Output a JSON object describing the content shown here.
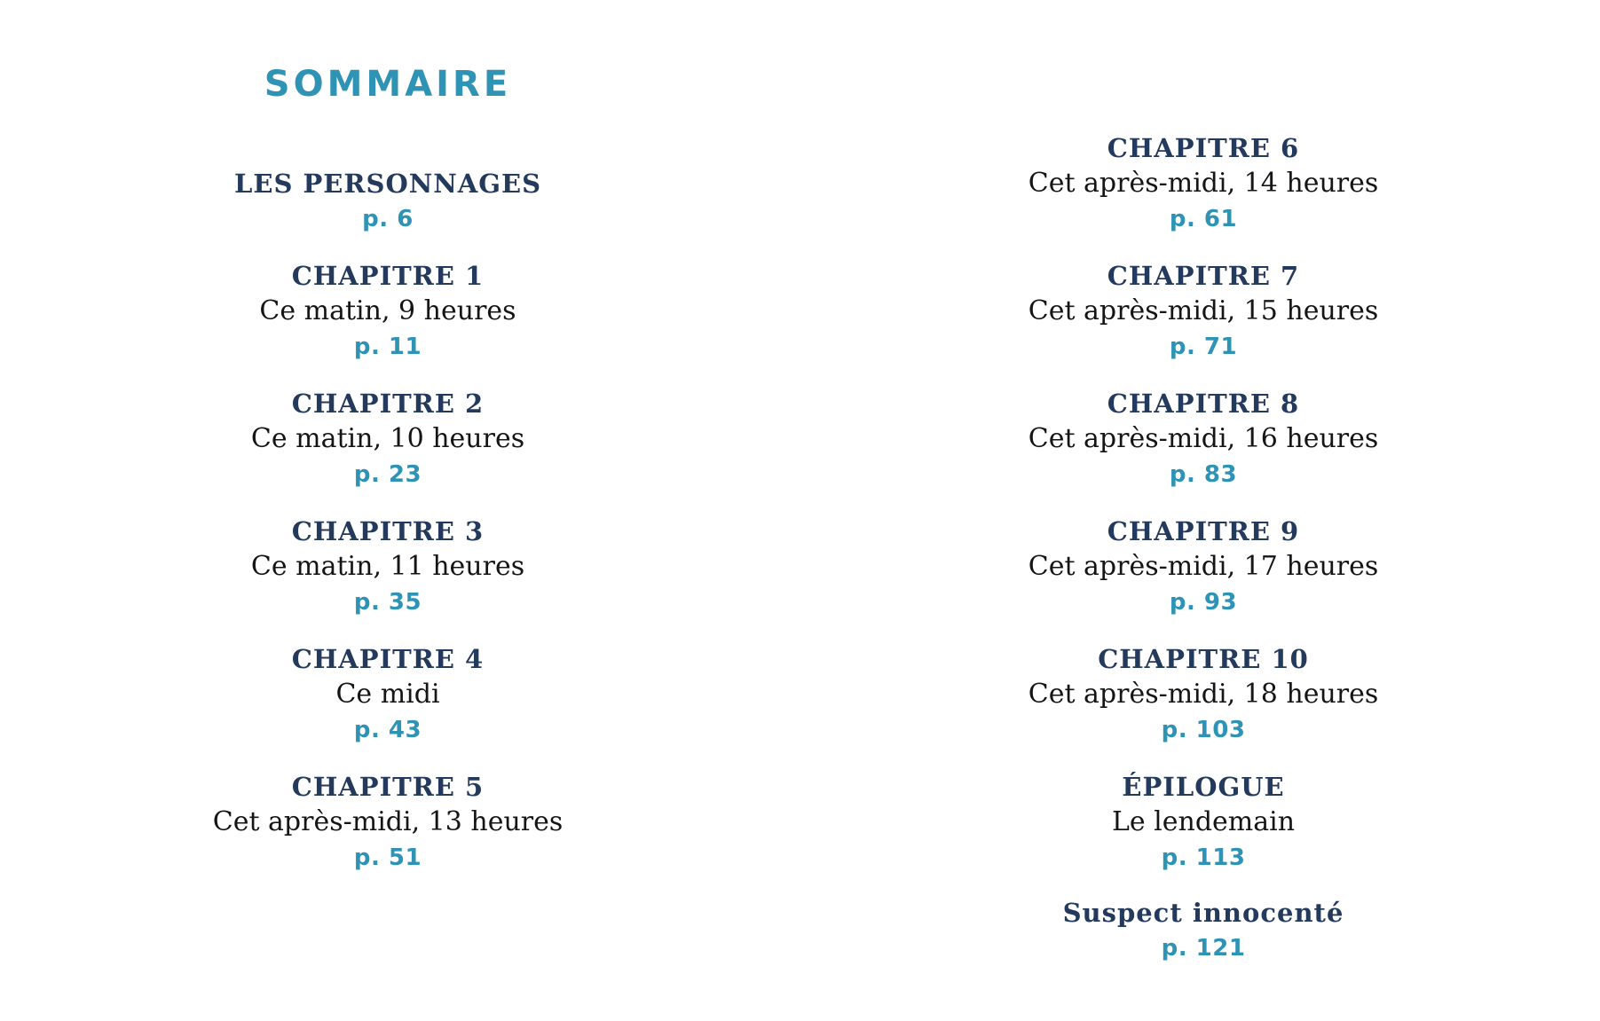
{
  "title": "SOMMAIRE",
  "colors": {
    "accent": "#2e93b5",
    "heading_navy": "#233a5c",
    "body_text": "#151515",
    "background": "#ffffff"
  },
  "toc": {
    "left_column": [
      {
        "title": "LES PERSONNAGES",
        "subtitle": "",
        "page": "p. 6"
      },
      {
        "title": "CHAPITRE 1",
        "subtitle": "Ce matin, 9 heures",
        "page": "p. 11"
      },
      {
        "title": "CHAPITRE 2",
        "subtitle": "Ce matin, 10 heures",
        "page": "p. 23"
      },
      {
        "title": "CHAPITRE 3",
        "subtitle": "Ce matin, 11 heures",
        "page": "p. 35"
      },
      {
        "title": "CHAPITRE 4",
        "subtitle": "Ce midi",
        "page": "p. 43"
      },
      {
        "title": "CHAPITRE 5",
        "subtitle": "Cet après-midi, 13 heures",
        "page": "p. 51"
      }
    ],
    "right_column": [
      {
        "title": "CHAPITRE 6",
        "subtitle": "Cet après-midi, 14 heures",
        "page": "p. 61"
      },
      {
        "title": "CHAPITRE 7",
        "subtitle": "Cet après-midi, 15 heures",
        "page": "p. 71"
      },
      {
        "title": "CHAPITRE 8",
        "subtitle": "Cet après-midi, 16 heures",
        "page": "p. 83"
      },
      {
        "title": "CHAPITRE 9",
        "subtitle": "Cet après-midi, 17 heures",
        "page": "p. 93"
      },
      {
        "title": "CHAPITRE 10",
        "subtitle": "Cet après-midi, 18 heures",
        "page": "p. 103"
      },
      {
        "title": "ÉPILOGUE",
        "subtitle": "Le lendemain",
        "page": "p. 113"
      },
      {
        "title": "Suspect innocenté",
        "subtitle": "",
        "page": "p. 121"
      }
    ]
  }
}
